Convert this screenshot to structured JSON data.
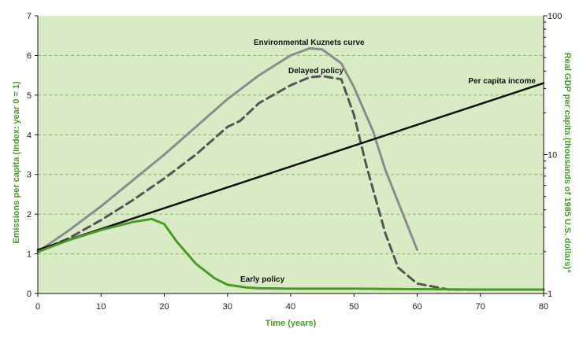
{
  "chart_data": {
    "type": "line",
    "xlabel": "Time (years)",
    "ylabel": "Emissions per capita (Index: year 0 = 1)",
    "y2label": "Real GDP per capita (thousands of 1985 U.S. dollars)ª",
    "xlim": [
      0,
      80
    ],
    "ylim": [
      0,
      7
    ],
    "y2lim": [
      1,
      100
    ],
    "y2scale": "log",
    "xticks": [
      "0",
      "10",
      "20",
      "30",
      "40",
      "50",
      "60",
      "70",
      "80"
    ],
    "yticks": [
      "0",
      "1",
      "2",
      "3",
      "4",
      "5",
      "6",
      "7"
    ],
    "y2ticks": [
      "1",
      "10",
      "100"
    ],
    "grid": "horizontal dashed",
    "background_color": "#d9ebc4",
    "series": [
      {
        "name": "Environmental Kuznets curve",
        "color": "#8c8c8c",
        "style": "solid",
        "x": [
          0,
          5,
          10,
          15,
          20,
          25,
          30,
          35,
          40,
          43,
          45,
          48,
          50,
          53,
          55,
          58,
          60
        ],
        "y": [
          1.05,
          1.6,
          2.2,
          2.85,
          3.5,
          4.2,
          4.9,
          5.5,
          6.0,
          6.18,
          6.15,
          5.8,
          5.2,
          4.1,
          3.1,
          1.9,
          1.1
        ]
      },
      {
        "name": "Delayed policy",
        "color": "#555555",
        "style": "dashed",
        "x": [
          0,
          5,
          10,
          15,
          20,
          25,
          30,
          32,
          35,
          40,
          43,
          45,
          48,
          50,
          52,
          55,
          57,
          60,
          65,
          70,
          80
        ],
        "y": [
          1.05,
          1.4,
          1.85,
          2.35,
          2.9,
          3.5,
          4.2,
          4.35,
          4.8,
          5.25,
          5.45,
          5.48,
          5.4,
          4.5,
          3.2,
          1.5,
          0.65,
          0.25,
          0.1,
          0.1,
          0.1
        ]
      },
      {
        "name": "Per capita income",
        "color": "#111111",
        "style": "solid",
        "x": [
          0,
          80
        ],
        "y": [
          1.1,
          5.3
        ]
      },
      {
        "name": "Early policy",
        "color": "#4a9a2a",
        "style": "solid",
        "x": [
          0,
          5,
          10,
          15,
          18,
          20,
          22,
          25,
          28,
          30,
          33,
          35,
          40,
          50,
          60,
          70,
          80
        ],
        "y": [
          1.05,
          1.35,
          1.6,
          1.8,
          1.88,
          1.75,
          1.3,
          0.75,
          0.38,
          0.22,
          0.15,
          0.13,
          0.12,
          0.12,
          0.11,
          0.1,
          0.1
        ]
      }
    ],
    "annotations": [
      {
        "text": "Environmental Kuznets curve",
        "series": "Environmental Kuznets curve"
      },
      {
        "text": "Delayed policy",
        "series": "Delayed policy"
      },
      {
        "text": "Per capita income",
        "series": "Per capita income"
      },
      {
        "text": "Early policy",
        "series": "Early policy"
      }
    ]
  }
}
